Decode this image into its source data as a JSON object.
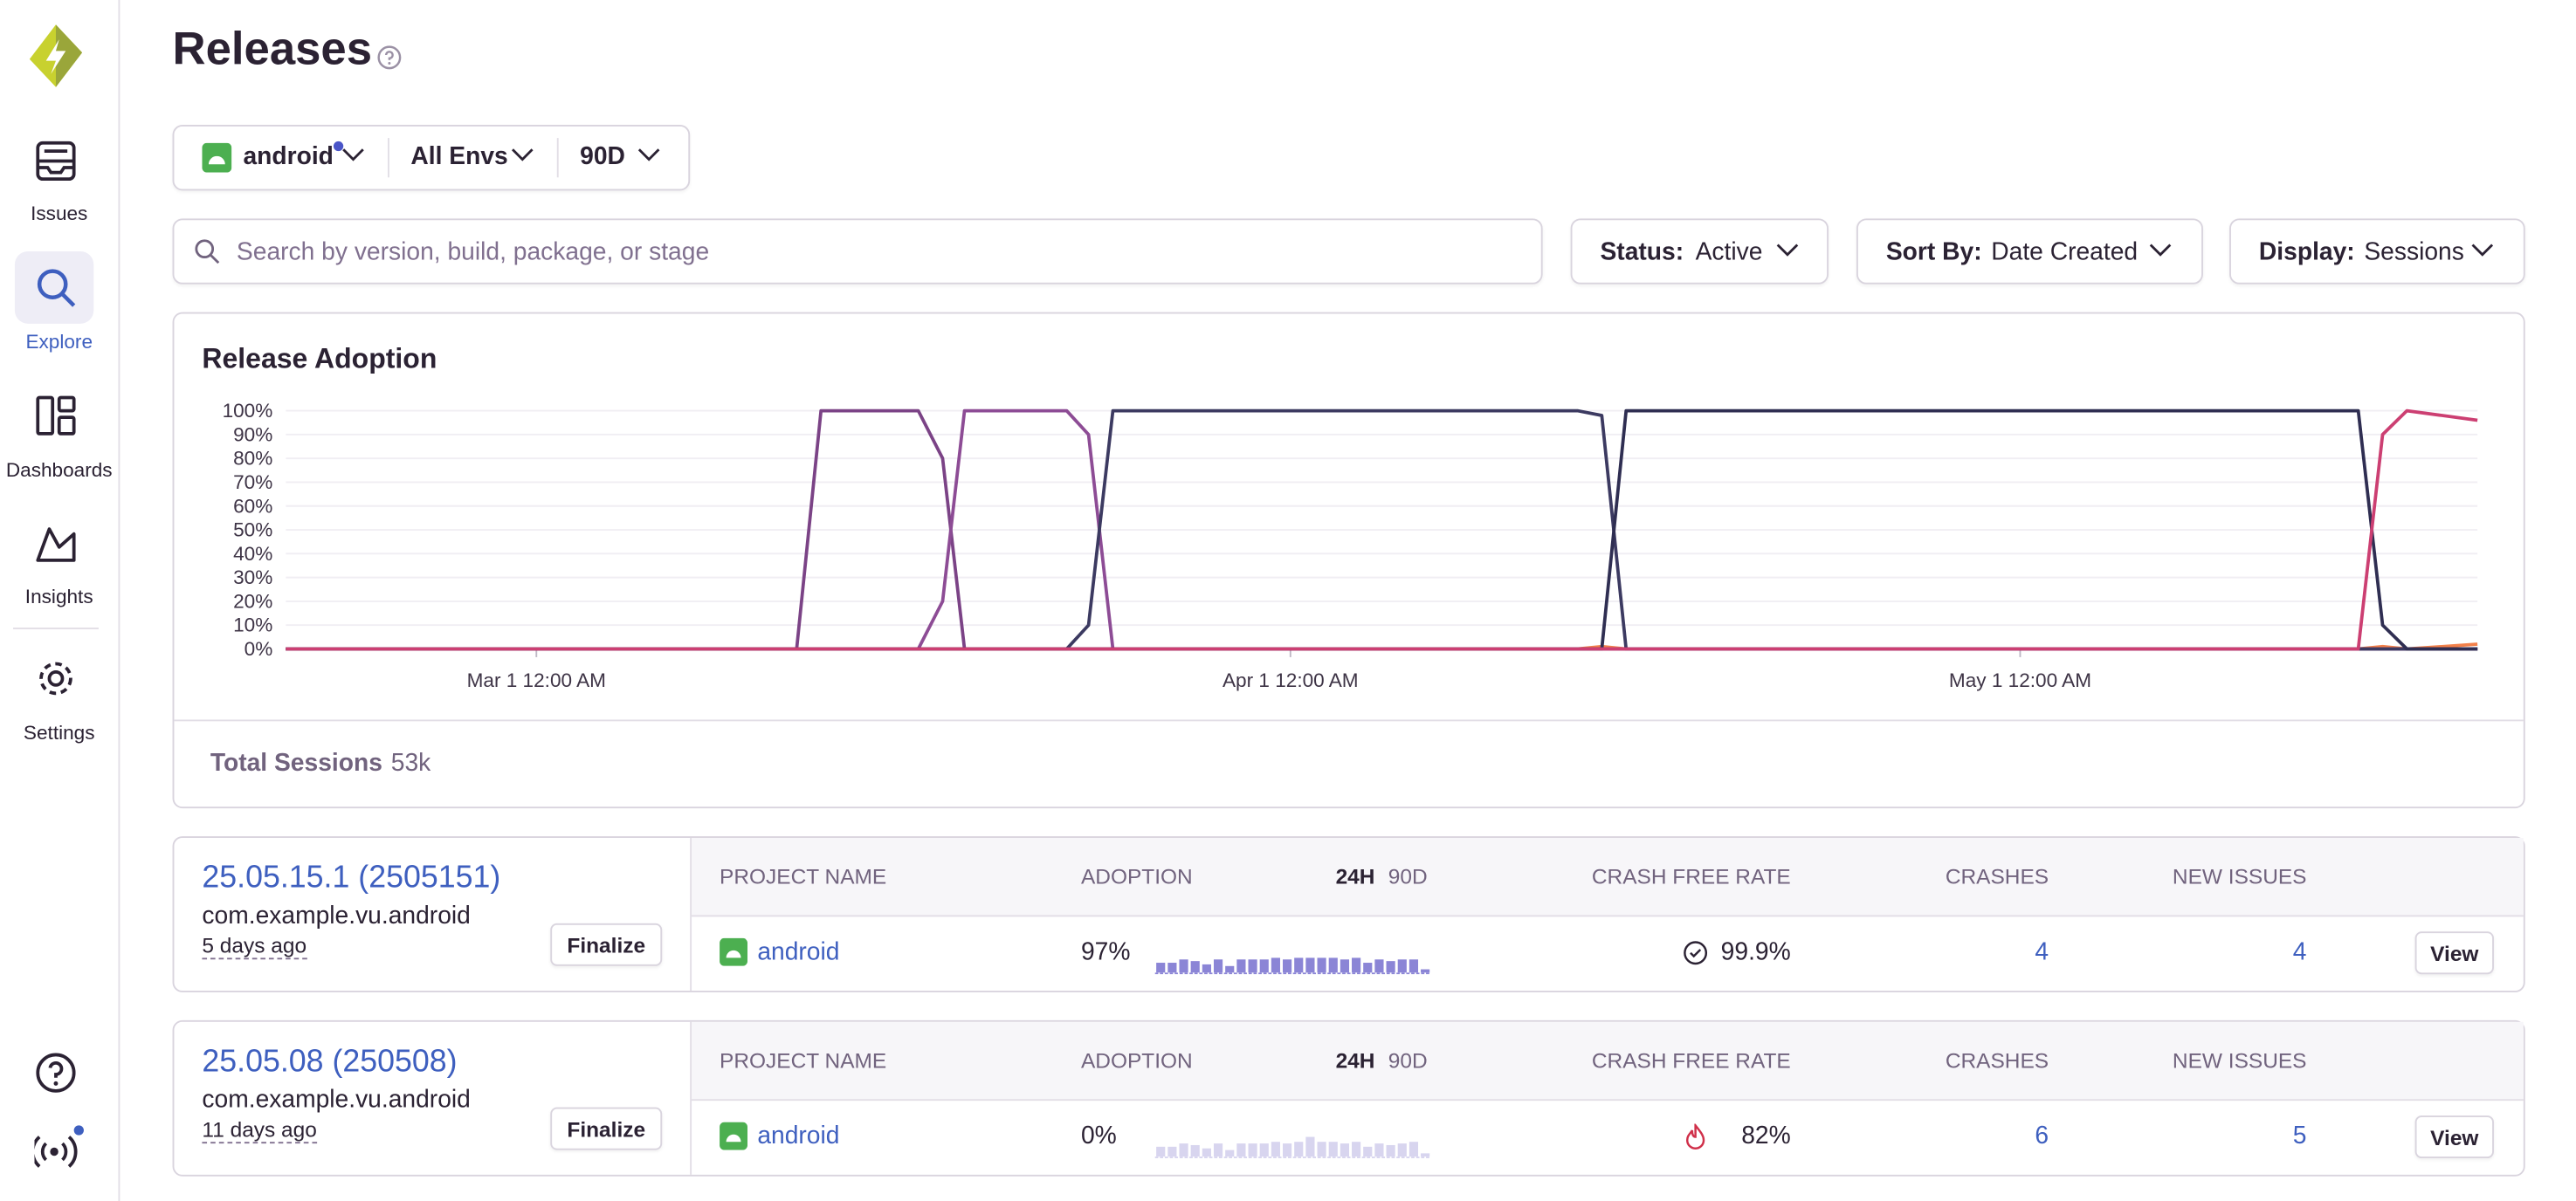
{
  "sidebar": {
    "nav": [
      "Issues",
      "Explore",
      "Dashboards",
      "Insights",
      "Settings"
    ]
  },
  "header": {
    "title": "Releases"
  },
  "filters": {
    "project": "android",
    "environment": "All Envs",
    "period": "90D"
  },
  "search": {
    "placeholder": "Search by version, build, package, or stage"
  },
  "controls": [
    {
      "label": "Status:",
      "value": "Active"
    },
    {
      "label": "Sort By:",
      "value": "Date Created"
    },
    {
      "label": "Display:",
      "value": "Sessions"
    }
  ],
  "chart_data": {
    "type": "line",
    "title": "Release Adoption",
    "x": [
      -10.3,
      10.7,
      11.7,
      15.7,
      16.7,
      17.6,
      21.8,
      22.7,
      23.7,
      42.8,
      43.8,
      44.8,
      74.9,
      75.9,
      76.9,
      79.8
    ],
    "xlim": [
      -10.3,
      79.8
    ],
    "xticks": [
      {
        "value": 0,
        "label": "Mar 1 12:00 AM"
      },
      {
        "value": 31,
        "label": "Apr 1 12:00 AM"
      },
      {
        "value": 61,
        "label": "May 1 12:00 AM"
      }
    ],
    "ylim": [
      0,
      100
    ],
    "yticks": [
      {
        "value": 0,
        "label": "0%"
      },
      {
        "value": 10,
        "label": "10%"
      },
      {
        "value": 20,
        "label": "20%"
      },
      {
        "value": 30,
        "label": "30%"
      },
      {
        "value": 40,
        "label": "40%"
      },
      {
        "value": 50,
        "label": "50%"
      },
      {
        "value": 60,
        "label": "60%"
      },
      {
        "value": 70,
        "label": "70%"
      },
      {
        "value": 80,
        "label": "80%"
      },
      {
        "value": 90,
        "label": "90%"
      },
      {
        "value": 100,
        "label": "100%"
      }
    ],
    "grid": true,
    "series": [
      {
        "color": "#f2804a",
        "values": [
          0,
          0,
          0,
          0,
          0,
          0,
          0,
          0,
          0,
          0,
          1,
          0,
          0,
          1,
          0,
          2
        ]
      },
      {
        "color": "#7b4386",
        "values": [
          0,
          0,
          100,
          100,
          80,
          0,
          0,
          0,
          0,
          0,
          0,
          0,
          0,
          0,
          0,
          0
        ]
      },
      {
        "color": "#8d4c95",
        "values": [
          0,
          0,
          0,
          0,
          20,
          100,
          100,
          90,
          0,
          0,
          0,
          0,
          0,
          0,
          0,
          0
        ]
      },
      {
        "color": "#3c3a61",
        "values": [
          0,
          0,
          0,
          0,
          0,
          0,
          0,
          10,
          100,
          100,
          98,
          0,
          0,
          0,
          0,
          0
        ]
      },
      {
        "color": "#2f2e52",
        "values": [
          0,
          0,
          0,
          0,
          0,
          0,
          0,
          0,
          0,
          0,
          0,
          100,
          100,
          10,
          0,
          0
        ]
      },
      {
        "color": "#cc3f72",
        "values": [
          0,
          0,
          0,
          0,
          0,
          0,
          0,
          0,
          0,
          0,
          0,
          0,
          0,
          90,
          100,
          96
        ]
      }
    ]
  },
  "total_sessions": {
    "label": "Total Sessions",
    "value": "53k"
  },
  "columns": {
    "project": "PROJECT NAME",
    "adoption": "ADOPTION",
    "period_24h": "24H",
    "period_90d": "90D",
    "crash_free": "CRASH FREE RATE",
    "crashes": "CRASHES",
    "new_issues": "NEW ISSUES"
  },
  "releases": [
    {
      "version": "25.05.15.1 (2505151)",
      "package": "com.example.vu.android",
      "age": "5 days ago",
      "finalize": "Finalize",
      "project": "android",
      "adoption": "97%",
      "sparkline": [
        6,
        6,
        8,
        7,
        5,
        8,
        4,
        8,
        8,
        8,
        9,
        8,
        9,
        9,
        9,
        9,
        8,
        9,
        6,
        8,
        7,
        8,
        8,
        2
      ],
      "crash_free": "99.9%",
      "crashes": "4",
      "new_issues": "4",
      "action": "View"
    },
    {
      "version": "25.05.08 (250508)",
      "package": "com.example.vu.android",
      "age": "11 days ago",
      "finalize": "Finalize",
      "project": "android",
      "adoption": "0%",
      "sparkline": [
        6,
        6,
        8,
        7,
        5,
        8,
        4,
        8,
        8,
        8,
        9,
        8,
        9,
        12,
        9,
        9,
        8,
        9,
        6,
        8,
        7,
        8,
        9,
        2
      ],
      "crash_free": "82%",
      "crashes": "6",
      "new_issues": "5",
      "action": "View"
    }
  ]
}
